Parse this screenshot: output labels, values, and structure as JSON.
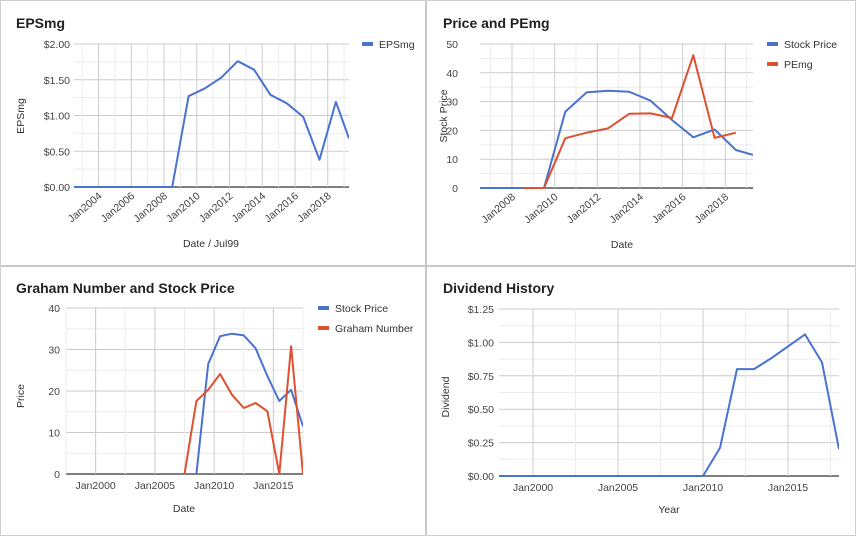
{
  "chart_data": [
    {
      "type": "line",
      "title": "EPSmg",
      "xlabel": "Date / Jul99",
      "ylabel": "EPSmg",
      "y_tick_labels": [
        "$0.00",
        "$0.50",
        "$1.00",
        "$1.50",
        "$2.00"
      ],
      "ylim": [
        0,
        2
      ],
      "x_tick_labels": [
        "Jan2004",
        "Jan2006",
        "Jan2008",
        "Jan2010",
        "Jan2012",
        "Jan2014",
        "Jan2016",
        "Jan2018"
      ],
      "legend_position": "right",
      "series": [
        {
          "name": "EPSmg",
          "color": "#4a72d0",
          "x": [
            2002.5,
            2003.5,
            2004.5,
            2005.5,
            2006.5,
            2007.5,
            2008.5,
            2009.5,
            2010.5,
            2011.5,
            2012.5,
            2013.5,
            2014.5,
            2015.5,
            2016.5,
            2017.5,
            2018.5,
            2019.3
          ],
          "y": [
            0,
            0,
            0,
            0,
            0,
            0,
            0,
            1.27,
            1.38,
            1.53,
            1.76,
            1.64,
            1.29,
            1.17,
            0.98,
            0.38,
            1.19,
            0.68
          ]
        }
      ]
    },
    {
      "type": "line",
      "title": "Price and PEmg",
      "xlabel": "Date",
      "ylabel": "Stock Price",
      "y_tick_labels": [
        "0",
        "10",
        "20",
        "30",
        "40",
        "50"
      ],
      "ylim": [
        0,
        50
      ],
      "x_tick_labels": [
        "Jan2008",
        "Jan2010",
        "Jan2012",
        "Jan2014",
        "Jan2016",
        "Jan2018"
      ],
      "legend_position": "right",
      "series": [
        {
          "name": "Stock Price",
          "color": "#4a72d0",
          "x": [
            2006.5,
            2007.5,
            2008.5,
            2009.5,
            2010.5,
            2011.5,
            2012.5,
            2013.5,
            2014.5,
            2015.5,
            2016.5,
            2017.5,
            2018.5,
            2019.3
          ],
          "y": [
            0,
            0,
            0,
            0,
            26.5,
            33.2,
            33.8,
            33.4,
            30.3,
            23.6,
            17.6,
            20.3,
            13.2,
            11.5
          ]
        },
        {
          "name": "PEmg",
          "color": "#de5030",
          "x": [
            2008.5,
            2009.5,
            2010.5,
            2011.5,
            2012.5,
            2013.5,
            2014.5,
            2015.5,
            2016.5,
            2017.5,
            2018.5
          ],
          "y": [
            0,
            0,
            17.3,
            19.2,
            20.7,
            25.8,
            25.9,
            24.3,
            46.1,
            17.4,
            19.2
          ]
        }
      ]
    },
    {
      "type": "line",
      "title": "Graham Number and Stock Price",
      "xlabel": "Date",
      "ylabel": "Price",
      "y_tick_labels": [
        "0",
        "10",
        "20",
        "30",
        "40"
      ],
      "ylim": [
        0,
        40
      ],
      "x_tick_labels": [
        "Jan2000",
        "Jan2005",
        "Jan2010",
        "Jan2015"
      ],
      "legend_position": "right",
      "series": [
        {
          "name": "Stock Price",
          "color": "#4a72d0",
          "x": [
            2008.5,
            2009.5,
            2010.5,
            2011.5,
            2012.5,
            2013.5,
            2014.5,
            2015.5,
            2016.5,
            2017.5
          ],
          "y": [
            0,
            26.5,
            33.2,
            33.8,
            33.4,
            30.3,
            23.6,
            17.6,
            20.3,
            11.5
          ]
        },
        {
          "name": "Graham Number",
          "color": "#de5030",
          "x": [
            2007.5,
            2008.5,
            2009.5,
            2010.5,
            2011.5,
            2012.5,
            2013.5,
            2014.5,
            2015.5,
            2016.5,
            2017.5
          ],
          "y": [
            0,
            17.6,
            20.3,
            24.1,
            19.1,
            15.9,
            17.1,
            15.1,
            0,
            30.8,
            0
          ]
        }
      ]
    },
    {
      "type": "line",
      "title": "Dividend History",
      "xlabel": "Year",
      "ylabel": "Dividend",
      "y_tick_labels": [
        "$0.00",
        "$0.25",
        "$0.50",
        "$0.75",
        "$1.00",
        "$1.25"
      ],
      "ylim": [
        0,
        1.25
      ],
      "x_tick_labels": [
        "Jan2000",
        "Jan2005",
        "Jan2010",
        "Jan2015"
      ],
      "series": [
        {
          "name": "Dividend",
          "color": "#4a72d0",
          "x": [
            1998,
            1999,
            2000,
            2001,
            2002,
            2003,
            2004,
            2005,
            2006,
            2007,
            2008,
            2009,
            2010,
            2011,
            2012,
            2013,
            2014,
            2015,
            2016,
            2017,
            2018
          ],
          "y": [
            0,
            0,
            0,
            0,
            0,
            0,
            0,
            0,
            0,
            0,
            0,
            0,
            0,
            0.21,
            0.8,
            0.8,
            0.88,
            0.97,
            1.06,
            0.85,
            0.2
          ]
        }
      ]
    }
  ]
}
